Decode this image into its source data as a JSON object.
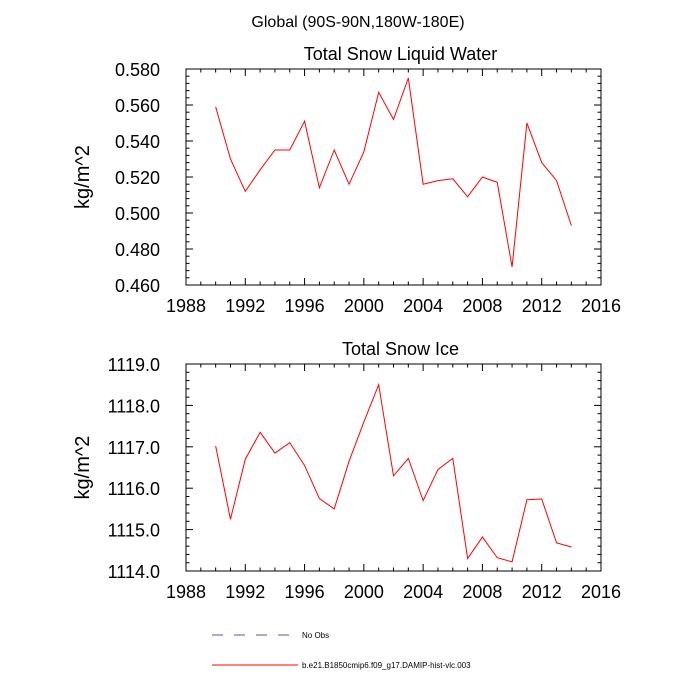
{
  "page_title": "Global (90S-90N,180W-180E)",
  "legend": {
    "items": [
      {
        "label": "No Obs",
        "color": "#5555aa",
        "style": "dashed"
      },
      {
        "label": "b.e21.B1850cmip6.f09_g17.DAMIP-hist-vlc.003",
        "color": "#ff0000",
        "style": "solid"
      }
    ]
  },
  "chart_data": [
    {
      "type": "line",
      "title": "Total Snow Liquid Water",
      "ylabel": "kg/m^2",
      "xlabel": "",
      "xlim": [
        1988,
        2016
      ],
      "ylim": [
        0.46,
        0.58
      ],
      "xticks": [
        1988,
        1992,
        1996,
        2000,
        2004,
        2008,
        2012,
        2016
      ],
      "xtick_labels": [
        "1988",
        "1992",
        "1996",
        "2000",
        "2004",
        "2008",
        "2012",
        "2016"
      ],
      "yticks": [
        0.46,
        0.48,
        0.5,
        0.52,
        0.54,
        0.56,
        0.58
      ],
      "ytick_labels": [
        "0.460",
        "0.480",
        "0.500",
        "0.520",
        "0.540",
        "0.560",
        "0.580"
      ],
      "series": [
        {
          "name": "b.e21.B1850cmip6.f09_g17.DAMIP-hist-vlc.003",
          "color": "#ff0000",
          "x": [
            1990,
            1991,
            1992,
            1993,
            1994,
            1995,
            1996,
            1997,
            1998,
            1999,
            2000,
            2001,
            2002,
            2003,
            2004,
            2005,
            2006,
            2007,
            2008,
            2009,
            2010,
            2011,
            2012,
            2013,
            2014
          ],
          "y": [
            0.559,
            0.53,
            0.512,
            0.524,
            0.535,
            0.535,
            0.551,
            0.514,
            0.535,
            0.516,
            0.534,
            0.567,
            0.552,
            0.575,
            0.516,
            0.518,
            0.519,
            0.509,
            0.52,
            0.517,
            0.47,
            0.55,
            0.528,
            0.518,
            0.493
          ]
        }
      ]
    },
    {
      "type": "line",
      "title": "Total Snow Ice",
      "ylabel": "kg/m^2",
      "xlabel": "",
      "xlim": [
        1988,
        2016
      ],
      "ylim": [
        1114.0,
        1119.0
      ],
      "xticks": [
        1988,
        1992,
        1996,
        2000,
        2004,
        2008,
        2012,
        2016
      ],
      "xtick_labels": [
        "1988",
        "1992",
        "1996",
        "2000",
        "2004",
        "2008",
        "2012",
        "2016"
      ],
      "yticks": [
        1114.0,
        1115.0,
        1116.0,
        1117.0,
        1118.0,
        1119.0
      ],
      "ytick_labels": [
        "1114.0",
        "1115.0",
        "1116.0",
        "1117.0",
        "1118.0",
        "1119.0"
      ],
      "series": [
        {
          "name": "b.e21.B1850cmip6.f09_g17.DAMIP-hist-vlc.003",
          "color": "#ff0000",
          "x": [
            1990,
            1991,
            1992,
            1993,
            1994,
            1995,
            1996,
            1997,
            1998,
            1999,
            2000,
            2001,
            2002,
            2003,
            2004,
            2005,
            2006,
            2007,
            2008,
            2009,
            2010,
            2011,
            2012,
            2013,
            2014
          ],
          "y": [
            1117.02,
            1115.25,
            1116.7,
            1117.35,
            1116.85,
            1117.1,
            1116.55,
            1115.75,
            1115.5,
            1116.65,
            1117.6,
            1118.5,
            1116.3,
            1116.72,
            1115.7,
            1116.45,
            1116.72,
            1114.3,
            1114.82,
            1114.32,
            1114.22,
            1115.72,
            1115.74,
            1114.68,
            1114.58
          ]
        }
      ]
    }
  ]
}
